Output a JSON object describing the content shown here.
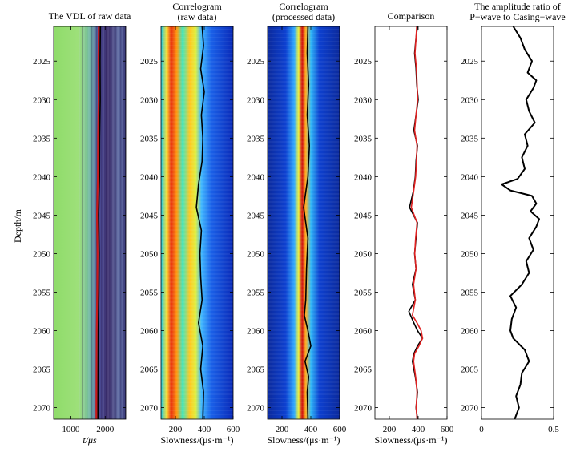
{
  "chart_data": [
    {
      "type": "heatmap",
      "title": "The VDL of raw data",
      "xlabel": "t/μs",
      "ylabel": "Depth/m",
      "xlim": [
        500,
        2600
      ],
      "ylim": [
        2071.5,
        2020.5
      ],
      "xticks": [
        1000,
        2000
      ],
      "xtick_labels": [
        "1000",
        "2000"
      ],
      "yticks": [
        2025,
        2030,
        2035,
        2040,
        2045,
        2050,
        2055,
        2060,
        2065,
        2070
      ],
      "ytick_labels": [
        "2025",
        "2030",
        "2035",
        "2040",
        "2045",
        "2050",
        "2055",
        "2060",
        "2065",
        "2070"
      ],
      "overlay_series": {
        "name": "picked arrival",
        "color": "#000000",
        "depth": [
          2020.5,
          2025,
          2030,
          2035,
          2040,
          2045,
          2050,
          2055,
          2060,
          2065,
          2070,
          2071.5
        ],
        "x": [
          1860,
          1850,
          1855,
          1840,
          1835,
          1810,
          1825,
          1815,
          1800,
          1795,
          1790,
          1790
        ]
      }
    },
    {
      "type": "heatmap",
      "title": [
        "Correlogram",
        "(raw data)"
      ],
      "xlabel": "Slowness/(μs·m⁻¹)",
      "xlim": [
        100,
        600
      ],
      "ylim": [
        2071.5,
        2020.5
      ],
      "xticks": [
        200,
        400,
        600
      ],
      "xtick_labels": [
        "200",
        "400",
        "600"
      ],
      "yticks": [
        2025,
        2030,
        2035,
        2040,
        2045,
        2050,
        2055,
        2060,
        2065,
        2070
      ],
      "ytick_labels": [
        "2025",
        "2030",
        "2035",
        "2040",
        "2045",
        "2050",
        "2055",
        "2060",
        "2065",
        "2070"
      ],
      "overlay_series": {
        "name": "picked slowness",
        "color": "#000000",
        "depth": [
          2020.5,
          2023,
          2026,
          2029,
          2032,
          2035,
          2038,
          2041,
          2044,
          2047,
          2050,
          2053,
          2056,
          2059,
          2062,
          2065,
          2068,
          2071.5
        ],
        "slowness": [
          385,
          395,
          375,
          400,
          380,
          390,
          385,
          360,
          345,
          380,
          370,
          375,
          385,
          360,
          390,
          375,
          395,
          390
        ]
      }
    },
    {
      "type": "heatmap",
      "title": [
        "Correlogram",
        "(processed data)"
      ],
      "xlabel": "Slowness/(μs·m⁻¹)",
      "xlim": [
        100,
        600
      ],
      "ylim": [
        2071.5,
        2020.5
      ],
      "xticks": [
        200,
        400,
        600
      ],
      "xtick_labels": [
        "200",
        "400",
        "600"
      ],
      "yticks": [
        2025,
        2030,
        2035,
        2040,
        2045,
        2050,
        2055,
        2060,
        2065,
        2070
      ],
      "ytick_labels": [
        "2025",
        "2030",
        "2035",
        "2040",
        "2045",
        "2050",
        "2055",
        "2060",
        "2065",
        "2070"
      ],
      "overlay_series": {
        "name": "picked slowness",
        "color": "#000000",
        "depth": [
          2020.5,
          2024,
          2028,
          2032,
          2036,
          2040,
          2044,
          2048,
          2052,
          2056,
          2058,
          2060,
          2062,
          2064,
          2066,
          2068,
          2071.5
        ],
        "slowness": [
          380,
          375,
          385,
          375,
          390,
          380,
          350,
          380,
          370,
          365,
          355,
          380,
          400,
          360,
          385,
          375,
          380
        ]
      }
    },
    {
      "type": "line",
      "title": "Comparison",
      "xlabel": "Slowness/(μs·m⁻¹)",
      "xlim": [
        100,
        600
      ],
      "ylim": [
        2071.5,
        2020.5
      ],
      "xticks": [
        200,
        400,
        600
      ],
      "xtick_labels": [
        "200",
        "400",
        "600"
      ],
      "yticks": [
        2025,
        2030,
        2035,
        2040,
        2045,
        2050,
        2055,
        2060,
        2065,
        2070
      ],
      "ytick_labels": [
        "2025",
        "2030",
        "2035",
        "2040",
        "2045",
        "2050",
        "2055",
        "2060",
        "2065",
        "2070"
      ],
      "series": [
        {
          "name": "raw",
          "color": "#000000",
          "depth": [
            2020.5,
            2022,
            2024,
            2026,
            2028,
            2030,
            2032,
            2034,
            2036,
            2038,
            2040,
            2042,
            2044,
            2046,
            2048,
            2050,
            2052,
            2054,
            2056,
            2057.5,
            2059,
            2060,
            2061,
            2062,
            2063,
            2064,
            2066,
            2068,
            2070,
            2071.5
          ],
          "slowness": [
            395,
            385,
            375,
            385,
            390,
            400,
            385,
            370,
            395,
            385,
            380,
            365,
            340,
            395,
            385,
            375,
            385,
            360,
            380,
            335,
            370,
            395,
            430,
            395,
            370,
            360,
            380,
            395,
            385,
            395
          ]
        },
        {
          "name": "processed",
          "color": "#e02020",
          "depth": [
            2020.5,
            2022,
            2024,
            2026,
            2028,
            2030,
            2032,
            2034,
            2036,
            2038,
            2040,
            2042,
            2044,
            2046,
            2048,
            2050,
            2052,
            2054,
            2056,
            2058,
            2059,
            2060,
            2061,
            2062,
            2063,
            2064,
            2066,
            2068,
            2070,
            2071.5
          ],
          "slowness": [
            390,
            385,
            378,
            388,
            392,
            396,
            385,
            375,
            392,
            388,
            382,
            368,
            352,
            392,
            382,
            376,
            385,
            368,
            380,
            360,
            392,
            420,
            430,
            405,
            375,
            368,
            382,
            392,
            386,
            392
          ]
        }
      ]
    },
    {
      "type": "line",
      "title": [
        "The amplitude ratio of",
        "P−wave to Casing−wave"
      ],
      "xlabel": "",
      "xlim": [
        0,
        0.5
      ],
      "ylim": [
        2071.5,
        2020.5
      ],
      "xticks": [
        0,
        0.5
      ],
      "xtick_labels": [
        "0",
        "0.5"
      ],
      "yticks": [
        2025,
        2030,
        2035,
        2040,
        2045,
        2050,
        2055,
        2060,
        2065,
        2070
      ],
      "ytick_labels": [
        "2025",
        "2030",
        "2035",
        "2040",
        "2045",
        "2050",
        "2055",
        "2060",
        "2065",
        "2070"
      ],
      "series": [
        {
          "name": "amplitude ratio",
          "color": "#000000",
          "depth": [
            2020.5,
            2022,
            2023.5,
            2025,
            2026.5,
            2027.5,
            2028.5,
            2030,
            2031.5,
            2033,
            2034.5,
            2036,
            2037.5,
            2039,
            2040.3,
            2041,
            2041.8,
            2042.5,
            2043.5,
            2044.5,
            2045.5,
            2046.5,
            2048,
            2049.5,
            2051,
            2052.5,
            2054,
            2055.5,
            2057,
            2058.5,
            2060,
            2061,
            2062.5,
            2064,
            2065.5,
            2067,
            2068.5,
            2070,
            2071.5
          ],
          "ratio": [
            0.22,
            0.27,
            0.3,
            0.35,
            0.32,
            0.38,
            0.36,
            0.31,
            0.33,
            0.37,
            0.3,
            0.32,
            0.28,
            0.3,
            0.25,
            0.14,
            0.2,
            0.35,
            0.38,
            0.34,
            0.4,
            0.38,
            0.33,
            0.36,
            0.31,
            0.33,
            0.28,
            0.2,
            0.24,
            0.21,
            0.2,
            0.22,
            0.3,
            0.33,
            0.28,
            0.27,
            0.24,
            0.26,
            0.23
          ]
        }
      ]
    }
  ]
}
